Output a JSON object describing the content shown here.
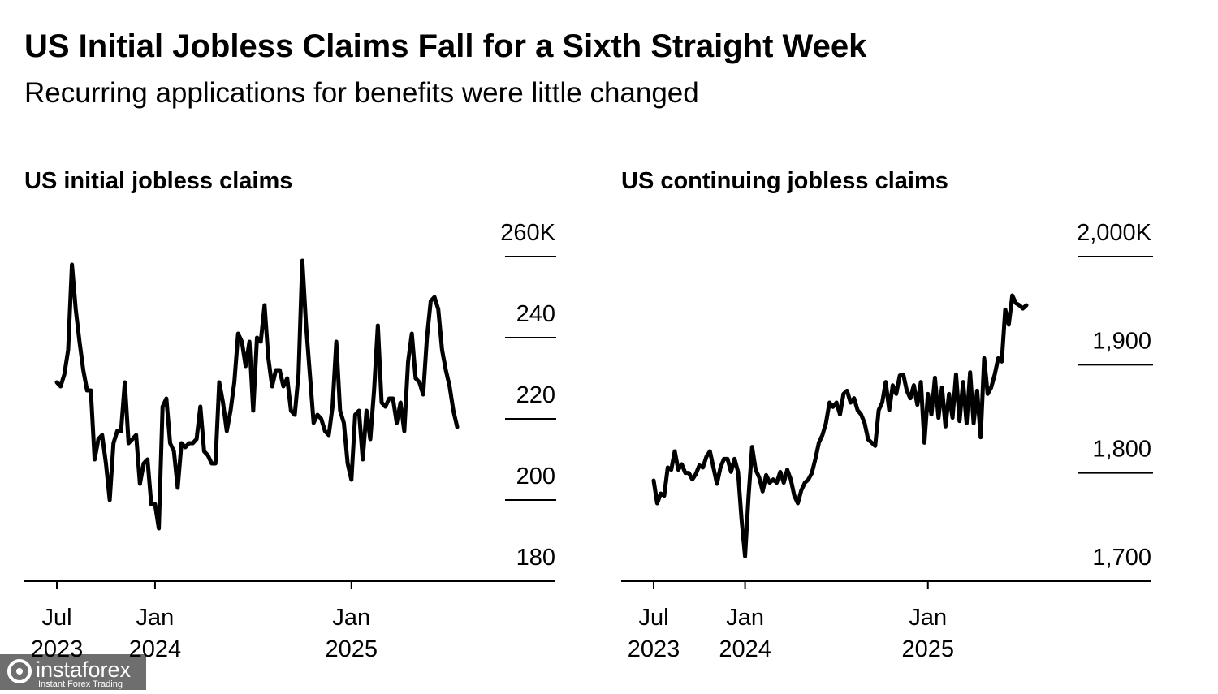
{
  "title": "US Initial Jobless Claims Fall for a Sixth Straight Week",
  "subtitle": "Recurring applications for benefits were little changed",
  "chart_data": [
    {
      "type": "line",
      "title": "US initial jobless claims",
      "color": "#000000",
      "categories": [
        "Jul 2023",
        null,
        null,
        null,
        null,
        null,
        null,
        null,
        null,
        null,
        null,
        null,
        null,
        null,
        null,
        null,
        null,
        null,
        null,
        null,
        null,
        null,
        null,
        null,
        null,
        null,
        "Jan 2024",
        null,
        null,
        null,
        null,
        null,
        null,
        null,
        null,
        null,
        null,
        null,
        null,
        null,
        null,
        null,
        null,
        null,
        null,
        null,
        null,
        null,
        null,
        null,
        null,
        null,
        null,
        null,
        null,
        null,
        null,
        null,
        null,
        null,
        null,
        null,
        null,
        null,
        null,
        null,
        null,
        null,
        null,
        null,
        null,
        null,
        null,
        null,
        null,
        null,
        null,
        null,
        "Jan 2025",
        null,
        null,
        null,
        null,
        null,
        null,
        null,
        null,
        null,
        null,
        null,
        null,
        null,
        null,
        null,
        null,
        null,
        null,
        null,
        null,
        null,
        null,
        null,
        null,
        null,
        null,
        null,
        null
      ],
      "values": [
        229,
        228,
        231,
        237,
        258,
        247,
        239,
        232,
        227,
        227,
        210,
        215,
        216,
        209,
        200,
        214,
        217,
        217,
        229,
        214,
        215,
        216,
        204,
        209,
        210,
        199,
        199,
        193,
        223,
        225,
        214,
        212,
        203,
        214,
        213,
        214,
        214,
        215,
        223,
        212,
        211,
        209,
        209,
        229,
        224,
        217,
        222,
        229,
        241,
        239,
        233,
        239,
        222,
        240,
        239,
        248,
        235,
        228,
        232,
        232,
        228,
        230,
        222,
        221,
        231,
        259,
        243,
        231,
        219,
        221,
        220,
        217,
        216,
        223,
        239,
        222,
        219,
        209,
        205,
        221,
        222,
        210,
        222,
        215,
        227,
        243,
        224,
        223,
        225,
        225,
        219,
        224,
        217,
        234,
        241,
        230,
        229,
        226,
        240,
        249,
        250,
        247,
        237,
        232,
        228,
        222,
        218
      ],
      "ylim": [
        180,
        260
      ],
      "yticks": [
        180,
        200,
        220,
        240,
        {
          "value": 260,
          "label": "260K"
        }
      ]
    },
    {
      "type": "line",
      "title": "US continuing jobless claims",
      "color": "#000000",
      "categories": [
        "Jul 2023",
        null,
        null,
        null,
        null,
        null,
        null,
        null,
        null,
        null,
        null,
        null,
        null,
        null,
        null,
        null,
        null,
        null,
        null,
        null,
        null,
        null,
        null,
        null,
        null,
        null,
        "Jan 2024",
        null,
        null,
        null,
        null,
        null,
        null,
        null,
        null,
        null,
        null,
        null,
        null,
        null,
        null,
        null,
        null,
        null,
        null,
        null,
        null,
        null,
        null,
        null,
        null,
        null,
        null,
        null,
        null,
        null,
        null,
        null,
        null,
        null,
        null,
        null,
        null,
        null,
        null,
        null,
        null,
        null,
        null,
        null,
        null,
        null,
        null,
        null,
        null,
        null,
        null,
        null,
        "Jan 2025",
        null,
        null,
        null,
        null,
        null,
        null,
        null,
        null,
        null,
        null,
        null,
        null,
        null,
        null,
        null,
        null,
        null,
        null,
        null,
        null,
        null,
        null,
        null,
        null,
        null,
        null,
        null,
        null
      ],
      "values": [
        1793,
        1772,
        1781,
        1779,
        1805,
        1803,
        1820,
        1803,
        1808,
        1800,
        1800,
        1794,
        1799,
        1807,
        1805,
        1815,
        1820,
        1805,
        1790,
        1805,
        1813,
        1813,
        1801,
        1813,
        1801,
        1757,
        1723,
        1779,
        1824,
        1803,
        1796,
        1783,
        1798,
        1791,
        1794,
        1791,
        1801,
        1791,
        1803,
        1794,
        1779,
        1772,
        1784,
        1791,
        1794,
        1800,
        1813,
        1828,
        1835,
        1846,
        1865,
        1861,
        1865,
        1854,
        1873,
        1876,
        1865,
        1869,
        1858,
        1854,
        1846,
        1831,
        1828,
        1825,
        1858,
        1865,
        1884,
        1858,
        1881,
        1873,
        1890,
        1891,
        1876,
        1869,
        1881,
        1863,
        1884,
        1828,
        1873,
        1854,
        1888,
        1851,
        1879,
        1843,
        1873,
        1851,
        1891,
        1848,
        1884,
        1846,
        1893,
        1846,
        1876,
        1833,
        1906,
        1873,
        1879,
        1891,
        1906,
        1903,
        1951,
        1937,
        1964,
        1957,
        1955,
        1952,
        1955
      ],
      "ylim": [
        1700,
        2000
      ],
      "yticks": [
        {
          "value": 1700,
          "label": "1,700"
        },
        {
          "value": 1800,
          "label": "1,800"
        },
        {
          "value": 1900,
          "label": "1,900"
        },
        {
          "value": 2000,
          "label": "2,000K"
        }
      ]
    }
  ],
  "watermark": {
    "name": "instaforex",
    "tagline": "Instant Forex Trading"
  }
}
